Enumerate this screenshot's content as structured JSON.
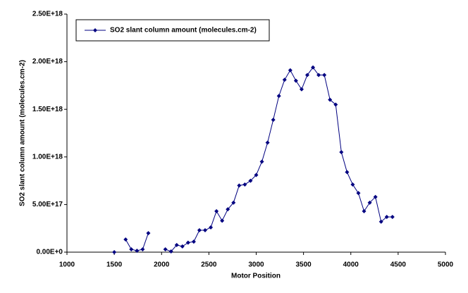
{
  "chart_data": {
    "type": "line",
    "x_label": "Motor Position",
    "y_label": "SO2 slant column amount (molecules.cm-2)",
    "legend": "top-left",
    "x": [
      1500,
      1560,
      1620,
      1680,
      1740,
      1800,
      1860,
      1920,
      1980,
      2040,
      2100,
      2160,
      2220,
      2280,
      2340,
      2400,
      2460,
      2520,
      2580,
      2640,
      2700,
      2760,
      2820,
      2880,
      2940,
      3000,
      3060,
      3120,
      3180,
      3240,
      3300,
      3360,
      3420,
      3480,
      3540,
      3600,
      3660,
      3720,
      3780,
      3840,
      3900,
      3960,
      4020,
      4080,
      4140,
      4200,
      4260,
      4320,
      4380,
      4440
    ],
    "series": [
      {
        "name": "SO2 slant column amount (molecules.cm-2)",
        "color": "#000080",
        "values": [
          0,
          null,
          1.33e+17,
          3e+16,
          1.5e+16,
          3e+16,
          2e+17,
          null,
          null,
          3e+16,
          7000000000000000.0,
          7.5e+16,
          6e+16,
          1e+17,
          1.1e+17,
          2.3e+17,
          2.3e+17,
          2.6e+17,
          4.3e+17,
          3.3e+17,
          4.5e+17,
          5.2e+17,
          7e+17,
          7.1e+17,
          7.5e+17,
          8.1e+17,
          9.5e+17,
          1.15e+18,
          1.39e+18,
          1.64e+18,
          1.81e+18,
          1.91e+18,
          1.8e+18,
          1.71e+18,
          1.86e+18,
          1.94e+18,
          1.86e+18,
          1.86e+18,
          1.6e+18,
          1.55e+18,
          1.05e+18,
          8.4e+17,
          7.1e+17,
          6.2e+17,
          4.3e+17,
          5.2e+17,
          5.8e+17,
          3.2e+17,
          3.7e+17,
          3.7e+17
        ]
      }
    ],
    "xlim": [
      1000,
      5000
    ],
    "xticks": [
      1000,
      1500,
      2000,
      2500,
      3000,
      3500,
      4000,
      4500,
      5000
    ],
    "ylim": [
      0,
      2.5e+18
    ],
    "yticks": [
      {
        "value": 0,
        "label": "0.00E+0"
      },
      {
        "value": 5e+17,
        "label": "5.00E+17"
      },
      {
        "value": 1e+18,
        "label": "1.00E+18"
      },
      {
        "value": 1.5e+18,
        "label": "1.50E+18"
      },
      {
        "value": 2e+18,
        "label": "2.00E+18"
      },
      {
        "value": 2.5e+18,
        "label": "2.50E+18"
      }
    ]
  }
}
